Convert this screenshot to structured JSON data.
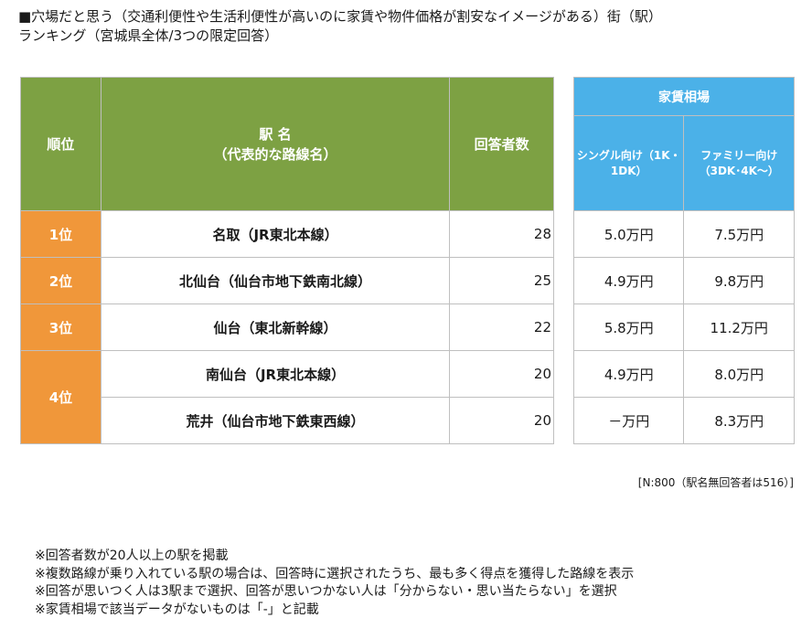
{
  "title": {
    "line1": "■穴場だと思う（交通利便性や生活利便性が高いのに家賃や物件価格が割安なイメージがある）街（駅）",
    "line2": "ランキング（宮城県全体/3つの限定回答）"
  },
  "table": {
    "headers": {
      "rank": "順位",
      "station_line1": "駅 名",
      "station_line2": "（代表的な路線名）",
      "count": "回答者数",
      "rent": "家賃相場",
      "single_line1": "シングル向け（1K・",
      "single_line2": "1DK）",
      "family_line1": "ファミリー向け",
      "family_line2": "（3DK･4K～）"
    },
    "rows": [
      {
        "rank": "1位",
        "station": "名取（JR東北本線）",
        "count": "28",
        "single": "5.0万円",
        "family": "7.5万円"
      },
      {
        "rank": "2位",
        "station": "北仙台（仙台市地下鉄南北線）",
        "count": "25",
        "single": "4.9万円",
        "family": "9.8万円"
      },
      {
        "rank": "3位",
        "station": "仙台（東北新幹線）",
        "count": "22",
        "single": "5.8万円",
        "family": "11.2万円"
      },
      {
        "rank": "4位",
        "station": "南仙台（JR東北本線）",
        "count": "20",
        "single": "4.9万円",
        "family": "8.0万円"
      },
      {
        "rank": "",
        "station": "荒井（仙台市地下鉄東西線）",
        "count": "20",
        "single": "－万円",
        "family": "8.3万円"
      }
    ]
  },
  "sample_note": "[N:800（駅名無回答者は516）]",
  "notes": [
    "※回答者数が20人以上の駅を掲載",
    "※複数路線が乗り入れている駅の場合は、回答時に選択されたうち、最も多く得点を獲得した路線を表示",
    "※回答が思いつく人は3駅まで選択、回答が思いつかない人は「分からない・思い当たらない」を選択",
    "※家賃相場で該当データがないものは「-」と記載"
  ]
}
